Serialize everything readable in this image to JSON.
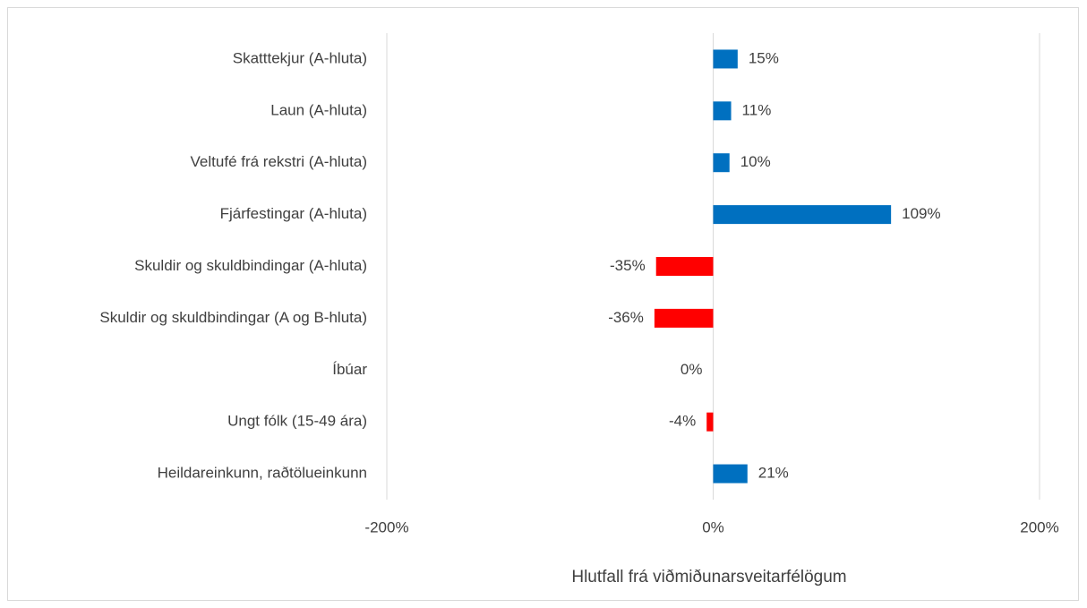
{
  "chart_data": {
    "type": "bar",
    "orientation": "horizontal",
    "x_label": "Hlutfall frá viðmiðunarsveitarfélögum",
    "categories": [
      "Skatttekjur (A-hluta)",
      "Laun (A-hluta)",
      "Veltufé frá rekstri (A-hluta)",
      "Fjárfestingar (A-hluta)",
      "Skuldir og skuldbindingar (A-hluta)",
      "Skuldir og skuldbindingar (A og B-hluta)",
      "Íbúar",
      "Ungt fólk (15-49 ára)",
      "Heildareinkunn, raðtölueinkunn"
    ],
    "values": [
      15,
      11,
      10,
      109,
      -35,
      -36,
      0,
      -4,
      21
    ],
    "value_labels": [
      "15%",
      "11%",
      "10%",
      "109%",
      "-35%",
      "-36%",
      "0%",
      "-4%",
      "21%"
    ],
    "colors": [
      "#0070c0",
      "#0070c0",
      "#0070c0",
      "#0070c0",
      "#ff0000",
      "#ff0000",
      "#ff0000",
      "#ff0000",
      "#0070c0"
    ],
    "xlim": [
      -200,
      200
    ],
    "xticks": [
      {
        "value": -200,
        "label": "-200%"
      },
      {
        "value": 0,
        "label": "0%"
      },
      {
        "value": 200,
        "label": "200%"
      }
    ],
    "grid": true
  }
}
